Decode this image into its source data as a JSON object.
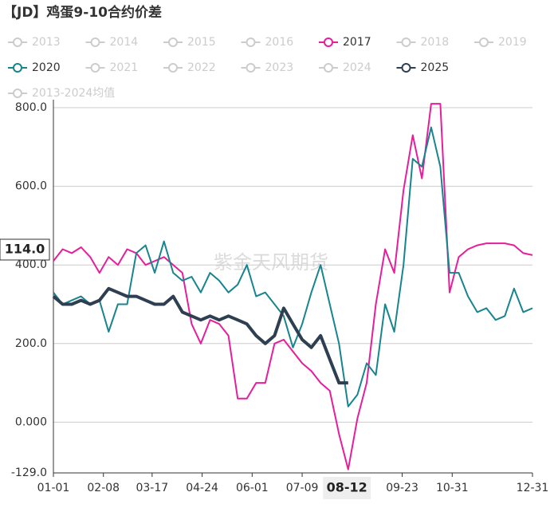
{
  "chart_data": {
    "type": "line",
    "title": "【JD】鸡蛋9-10合约价差",
    "watermark": "紫金天风期货",
    "categories": [
      "01-01",
      "01-08",
      "01-15",
      "01-22",
      "01-29",
      "02-05",
      "02-12",
      "02-19",
      "02-26",
      "03-05",
      "03-12",
      "03-19",
      "03-26",
      "04-02",
      "04-09",
      "04-16",
      "04-23",
      "04-30",
      "05-07",
      "05-14",
      "05-21",
      "05-28",
      "06-04",
      "06-11",
      "06-18",
      "06-25",
      "07-02",
      "07-09",
      "07-16",
      "07-23",
      "07-30",
      "08-06",
      "08-13",
      "08-20",
      "08-27",
      "09-03",
      "09-10",
      "09-17",
      "09-24",
      "10-01",
      "10-08",
      "10-15",
      "10-22",
      "10-29",
      "11-05",
      "11-12",
      "11-19",
      "11-26",
      "12-03",
      "12-10",
      "12-17",
      "12-24",
      "12-31"
    ],
    "xticks": [
      "01-01",
      "02-08",
      "03-17",
      "04-24",
      "06-01",
      "07-09",
      "09-23",
      "10-31",
      "12-31"
    ],
    "pointer": {
      "x": "08-12",
      "y_label": "114.0"
    },
    "ylim": [
      -129,
      800
    ],
    "yticks": [
      {
        "value": 800,
        "label": "800.0"
      },
      {
        "value": 600,
        "label": "600.0"
      },
      {
        "value": 400,
        "label": "400.0"
      },
      {
        "value": 200,
        "label": "200.0"
      },
      {
        "value": 0,
        "label": "0.000"
      },
      {
        "value": -129,
        "label": "-129.0"
      }
    ],
    "grid": true,
    "series": [
      {
        "name": "2013",
        "selected": false
      },
      {
        "name": "2014",
        "selected": false
      },
      {
        "name": "2015",
        "selected": false
      },
      {
        "name": "2016",
        "selected": false
      },
      {
        "name": "2017",
        "selected": true,
        "color": "#e61e9a",
        "values": [
          410,
          440,
          430,
          445,
          420,
          380,
          420,
          400,
          440,
          430,
          400,
          410,
          420,
          400,
          380,
          250,
          200,
          260,
          250,
          220,
          60,
          60,
          100,
          100,
          200,
          210,
          180,
          150,
          130,
          100,
          80,
          -30,
          -120,
          10,
          100,
          300,
          440,
          380,
          590,
          730,
          620,
          810,
          810,
          330,
          420,
          440,
          450,
          455,
          455,
          455,
          450,
          430,
          425
        ]
      },
      {
        "name": "2018",
        "selected": false
      },
      {
        "name": "2019",
        "selected": false
      },
      {
        "name": "2020",
        "selected": true,
        "color": "#17848e",
        "values": [
          330,
          300,
          310,
          320,
          300,
          310,
          230,
          300,
          300,
          430,
          450,
          380,
          460,
          380,
          360,
          370,
          330,
          380,
          360,
          330,
          350,
          400,
          320,
          330,
          300,
          270,
          190,
          250,
          330,
          400,
          300,
          200,
          40,
          70,
          150,
          120,
          300,
          230,
          400,
          670,
          650,
          750,
          650,
          380,
          380,
          320,
          280,
          290,
          260,
          270,
          340,
          280,
          290
        ]
      },
      {
        "name": "2021",
        "selected": false
      },
      {
        "name": "2022",
        "selected": false
      },
      {
        "name": "2023",
        "selected": false
      },
      {
        "name": "2024",
        "selected": false
      },
      {
        "name": "2025",
        "selected": true,
        "color": "#2e3f52",
        "width": 4,
        "values": [
          320,
          300,
          300,
          310,
          300,
          310,
          340,
          330,
          320,
          320,
          310,
          300,
          300,
          320,
          280,
          270,
          260,
          270,
          260,
          270,
          260,
          250,
          220,
          200,
          220,
          290,
          250,
          210,
          190,
          220,
          160,
          100,
          100,
          null,
          null,
          null,
          null,
          null,
          null,
          null,
          null,
          null,
          null,
          null,
          null,
          null,
          null,
          null,
          null,
          null,
          null,
          null,
          null
        ]
      },
      {
        "name": "2013-2024均值",
        "selected": false
      }
    ]
  }
}
